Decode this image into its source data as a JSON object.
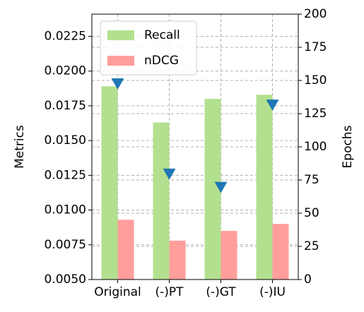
{
  "chart_data": {
    "type": "bar",
    "categories": [
      "Original",
      "(-)PT",
      "(-)GT",
      "(-)IU"
    ],
    "series": [
      {
        "name": "Recall",
        "color": "#b3e08f",
        "values": [
          0.0189,
          0.0163,
          0.018,
          0.0183
        ]
      },
      {
        "name": "nDCG",
        "color": "#ff9e9b",
        "values": [
          0.0093,
          0.0078,
          0.0085,
          0.009
        ]
      },
      {
        "color": "#1f77b4",
        "axis": "y2",
        "marker": "triangle-down",
        "values": [
          148,
          80,
          70,
          132
        ]
      }
    ],
    "ylabel": "Metrics",
    "y2label": "Epochs",
    "ylim": [
      0.005,
      0.0241
    ],
    "yticks": [
      {
        "value": 0.005,
        "label": "0.0050"
      },
      0.0075,
      {
        "value": 0.01,
        "label": "0.0100"
      },
      0.0125,
      {
        "value": 0.015,
        "label": "0.0150"
      },
      0.0175,
      {
        "value": 0.02,
        "label": "0.0200"
      },
      0.0225
    ],
    "y2lim": [
      0,
      200
    ],
    "y2ticks": [
      0,
      25,
      50,
      75,
      100,
      125,
      150,
      175,
      200
    ],
    "grid": true,
    "legend": "upper left"
  }
}
